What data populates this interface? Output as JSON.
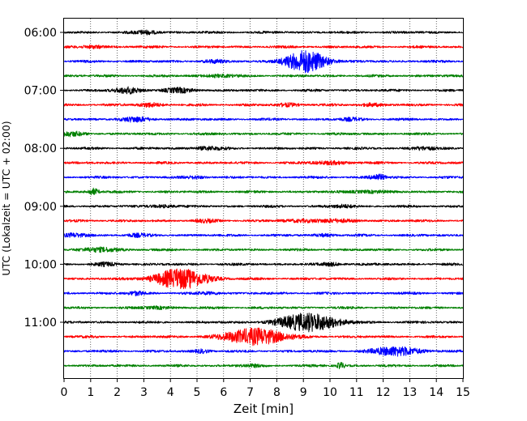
{
  "chart_data": {
    "type": "line",
    "title": "",
    "xlabel": "Zeit  [min]",
    "ylabel": "UTC (Lokalzeit = UTC + 02:00)",
    "xlim": [
      0,
      15
    ],
    "x_ticks": [
      "0",
      "1",
      "2",
      "3",
      "4",
      "5",
      "6",
      "7",
      "8",
      "9",
      "10",
      "11",
      "12",
      "13",
      "14",
      "15"
    ],
    "y_ticks": [
      {
        "label": "06:00",
        "trace_index": 0
      },
      {
        "label": "07:00",
        "trace_index": 4
      },
      {
        "label": "08:00",
        "trace_index": 8
      },
      {
        "label": "09:00",
        "trace_index": 12
      },
      {
        "label": "10:00",
        "trace_index": 16
      },
      {
        "label": "11:00",
        "trace_index": 20
      }
    ],
    "grid": "vertical dotted at each minute",
    "trace_minutes": 15,
    "color_cycle": [
      "#000000",
      "#ff0000",
      "#0000ff",
      "#008000"
    ],
    "series": [
      {
        "start": "06:00",
        "color": "#000000",
        "events": [
          [
            3.1,
            2.2,
            0.3
          ]
        ]
      },
      {
        "start": "06:15",
        "color": "#ff0000",
        "events": [
          [
            1.1,
            1.6,
            0.3
          ]
        ]
      },
      {
        "start": "06:30",
        "color": "#0000ff",
        "events": [
          [
            9.1,
            13.0,
            0.55
          ],
          [
            5.6,
            1.5,
            0.3
          ]
        ]
      },
      {
        "start": "06:45",
        "color": "#008000",
        "events": [
          [
            5.8,
            1.5,
            0.4
          ]
        ]
      },
      {
        "start": "07:00",
        "color": "#000000",
        "events": [
          [
            2.4,
            3.5,
            0.35
          ],
          [
            4.3,
            2.2,
            0.45
          ]
        ]
      },
      {
        "start": "07:15",
        "color": "#ff0000",
        "events": [
          [
            3.2,
            2.4,
            0.3
          ],
          [
            8.4,
            1.8,
            0.3
          ],
          [
            11.5,
            1.6,
            0.3
          ]
        ]
      },
      {
        "start": "07:30",
        "color": "#0000ff",
        "events": [
          [
            2.7,
            2.4,
            0.4
          ],
          [
            10.8,
            1.4,
            0.3
          ]
        ]
      },
      {
        "start": "07:45",
        "color": "#008000",
        "events": [
          [
            0.3,
            2.0,
            0.35
          ]
        ]
      },
      {
        "start": "08:00",
        "color": "#000000",
        "events": [
          [
            5.4,
            2.0,
            0.35
          ],
          [
            13.5,
            1.8,
            0.3
          ]
        ]
      },
      {
        "start": "08:15",
        "color": "#ff0000",
        "events": [
          [
            10.0,
            1.8,
            0.5
          ]
        ]
      },
      {
        "start": "08:30",
        "color": "#0000ff",
        "events": [
          [
            11.8,
            3.5,
            0.2
          ],
          [
            5.0,
            1.4,
            0.3
          ]
        ]
      },
      {
        "start": "08:45",
        "color": "#008000",
        "events": [
          [
            1.1,
            3.8,
            0.15
          ],
          [
            11.3,
            1.4,
            0.5
          ]
        ]
      },
      {
        "start": "09:00",
        "color": "#000000",
        "events": [
          [
            3.7,
            1.6,
            0.3
          ],
          [
            10.5,
            1.6,
            0.3
          ]
        ]
      },
      {
        "start": "09:15",
        "color": "#ff0000",
        "events": [
          [
            9.6,
            1.8,
            0.8
          ],
          [
            5.3,
            1.3,
            0.3
          ]
        ]
      },
      {
        "start": "09:30",
        "color": "#0000ff",
        "events": [
          [
            0.4,
            2.0,
            0.3
          ],
          [
            2.7,
            1.6,
            0.3
          ],
          [
            9.8,
            1.3,
            0.3
          ]
        ]
      },
      {
        "start": "09:45",
        "color": "#008000",
        "events": [
          [
            1.4,
            2.4,
            0.45
          ]
        ]
      },
      {
        "start": "10:00",
        "color": "#000000",
        "events": [
          [
            1.6,
            1.6,
            0.3
          ],
          [
            10.1,
            1.6,
            0.3
          ]
        ]
      },
      {
        "start": "10:15",
        "color": "#ff0000",
        "events": [
          [
            4.4,
            12.0,
            0.7
          ]
        ]
      },
      {
        "start": "10:30",
        "color": "#0000ff",
        "events": [
          [
            2.7,
            2.2,
            0.2
          ],
          [
            5.5,
            1.4,
            0.3
          ]
        ]
      },
      {
        "start": "10:45",
        "color": "#008000",
        "events": [
          [
            3.5,
            1.4,
            0.35
          ]
        ]
      },
      {
        "start": "11:00",
        "color": "#000000",
        "events": [
          [
            9.2,
            11.0,
            0.75
          ]
        ]
      },
      {
        "start": "11:15",
        "color": "#ff0000",
        "events": [
          [
            7.2,
            10.0,
            0.8
          ]
        ]
      },
      {
        "start": "11:30",
        "color": "#0000ff",
        "events": [
          [
            12.5,
            5.5,
            0.6
          ],
          [
            5.2,
            2.0,
            0.2
          ]
        ]
      },
      {
        "start": "11:45",
        "color": "#008000",
        "events": [
          [
            10.4,
            3.8,
            0.1
          ],
          [
            7.0,
            1.2,
            0.3
          ]
        ]
      }
    ]
  }
}
